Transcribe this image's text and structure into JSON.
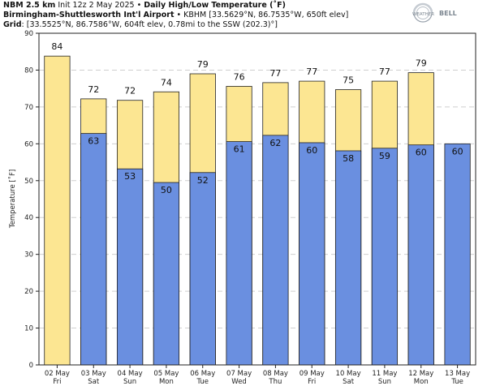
{
  "header": {
    "model": "NBM 2.5 km",
    "init": "Init 12z 2 May 2025",
    "sep1": "•",
    "product": "Daily High/Low Temperature (˚F)",
    "station_name": "Birmingham-Shuttlesworth Int'l Airport",
    "sep2": "•",
    "station_info": "KBHM [33.5629°N, 86.7535°W, 650ft elev]",
    "grid_label": "Grid",
    "grid_info": ": [33.5525°N, 86.7586°W, 604ft elev, 0.78mi to the SSW (202.3)°]"
  },
  "logo": {
    "text_weather": "WEATHER",
    "text_bell": "BELL"
  },
  "chart_data": {
    "type": "bar",
    "ylabel": "Temperature [˚F]",
    "ylim": [
      0,
      90
    ],
    "yticks": [
      0,
      10,
      20,
      30,
      40,
      50,
      60,
      70,
      80,
      90
    ],
    "grid": true,
    "categories": [
      {
        "date": "02 May",
        "day": "Fri"
      },
      {
        "date": "03 May",
        "day": "Sat"
      },
      {
        "date": "04 May",
        "day": "Sun"
      },
      {
        "date": "05 May",
        "day": "Mon"
      },
      {
        "date": "06 May",
        "day": "Tue"
      },
      {
        "date": "07 May",
        "day": "Wed"
      },
      {
        "date": "08 May",
        "day": "Thu"
      },
      {
        "date": "09 May",
        "day": "Fri"
      },
      {
        "date": "10 May",
        "day": "Sat"
      },
      {
        "date": "11 May",
        "day": "Sun"
      },
      {
        "date": "12 May",
        "day": "Mon"
      },
      {
        "date": "13 May",
        "day": "Tue"
      }
    ],
    "series": [
      {
        "role": "high",
        "color": "#fce692",
        "values": [
          83.8,
          72.2,
          71.8,
          74.1,
          79.0,
          75.6,
          76.6,
          77.0,
          74.7,
          77.0,
          79.3,
          null
        ],
        "labels": [
          "84",
          "72",
          "72",
          "74",
          "79",
          "76",
          "77",
          "77",
          "75",
          "77",
          "79",
          ""
        ]
      },
      {
        "role": "low",
        "color": "#6a8fe0",
        "values": [
          null,
          62.8,
          53.2,
          49.5,
          52.2,
          60.6,
          62.3,
          60.3,
          58.1,
          58.8,
          59.7,
          60.0
        ],
        "labels": [
          "",
          "63",
          "53",
          "50",
          "52",
          "61",
          "62",
          "60",
          "58",
          "59",
          "60",
          "60"
        ]
      }
    ]
  }
}
